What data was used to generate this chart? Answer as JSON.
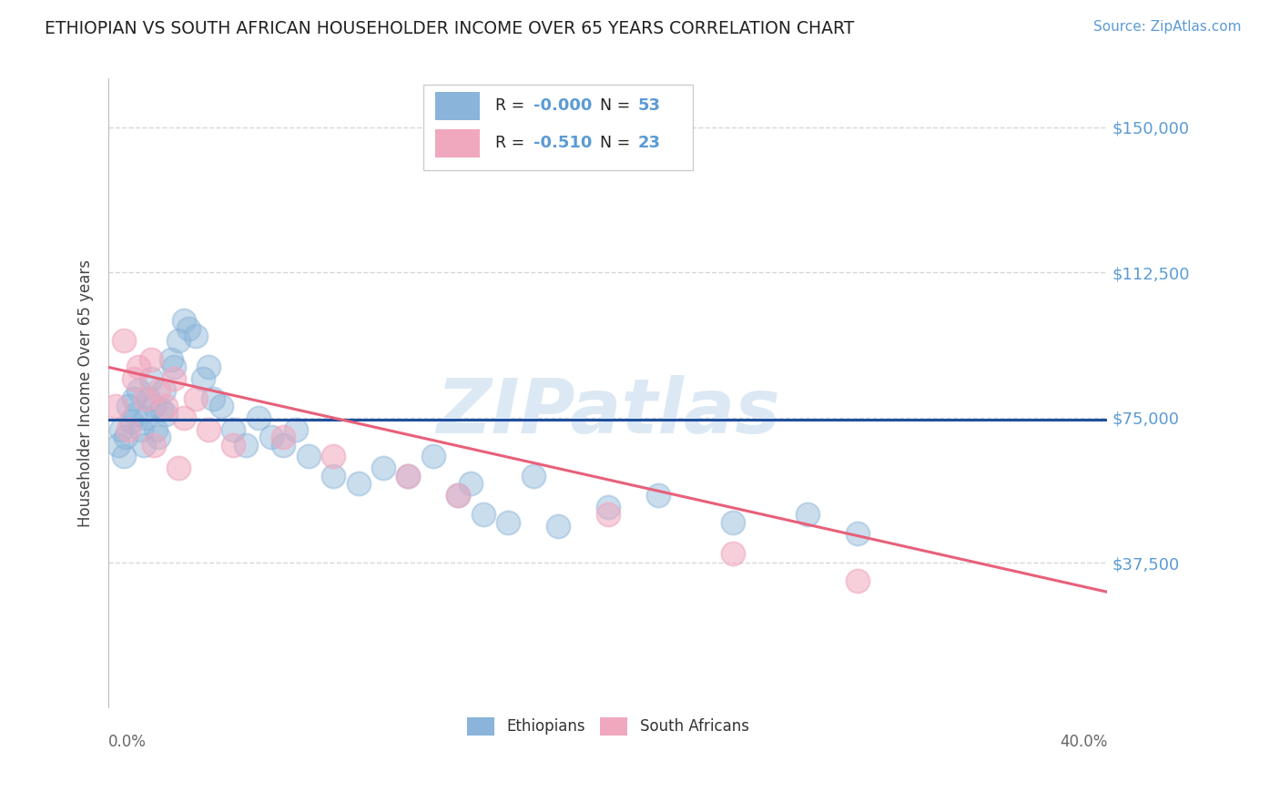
{
  "title": "ETHIOPIAN VS SOUTH AFRICAN HOUSEHOLDER INCOME OVER 65 YEARS CORRELATION CHART",
  "source": "Source: ZipAtlas.com",
  "ylabel": "Householder Income Over 65 years",
  "xlim": [
    0.0,
    40.0
  ],
  "ylim": [
    0,
    162500
  ],
  "yticks": [
    0,
    37500,
    75000,
    112500,
    150000
  ],
  "ytick_labels": [
    "",
    "$37,500",
    "$75,000",
    "$112,500",
    "$150,000"
  ],
  "background_color": "#ffffff",
  "title_color": "#222222",
  "title_fontsize": 13.5,
  "source_color": "#5b9bd5",
  "watermark_text": "ZIPatlas",
  "watermark_color": "#dce9f5",
  "blue_color": "#8ab4d9",
  "pink_color": "#f0a8be",
  "blue_line_color": "#1f4e9c",
  "pink_line_color": "#e8607a",
  "grid_color": "#cccccc",
  "blue_line_x": [
    0.0,
    40.0
  ],
  "blue_line_y": [
    74500,
    74500
  ],
  "pink_line_x": [
    0.0,
    40.0
  ],
  "pink_line_y": [
    88000,
    30000
  ],
  "ethiopian_x": [
    0.4,
    0.5,
    0.6,
    0.7,
    0.8,
    0.9,
    1.0,
    1.1,
    1.2,
    1.3,
    1.4,
    1.5,
    1.6,
    1.7,
    1.8,
    1.9,
    2.0,
    2.1,
    2.2,
    2.3,
    2.5,
    2.6,
    2.8,
    3.0,
    3.2,
    3.5,
    3.8,
    4.0,
    4.2,
    4.5,
    5.0,
    5.5,
    6.0,
    6.5,
    7.0,
    7.5,
    8.0,
    9.0,
    10.0,
    11.0,
    12.0,
    13.0,
    14.0,
    15.0,
    16.0,
    18.0,
    20.0,
    22.0,
    25.0,
    28.0,
    30.0,
    14.5,
    17.0
  ],
  "ethiopian_y": [
    68000,
    72000,
    65000,
    70000,
    78000,
    74000,
    80000,
    76000,
    82000,
    72000,
    68000,
    75000,
    80000,
    85000,
    78000,
    72000,
    70000,
    77000,
    82000,
    76000,
    90000,
    88000,
    95000,
    100000,
    98000,
    96000,
    85000,
    88000,
    80000,
    78000,
    72000,
    68000,
    75000,
    70000,
    68000,
    72000,
    65000,
    60000,
    58000,
    62000,
    60000,
    65000,
    55000,
    50000,
    48000,
    47000,
    52000,
    55000,
    48000,
    50000,
    45000,
    58000,
    60000
  ],
  "sa_x": [
    0.3,
    0.6,
    0.8,
    1.0,
    1.2,
    1.5,
    1.7,
    2.0,
    2.3,
    2.6,
    3.0,
    3.5,
    4.0,
    5.0,
    7.0,
    9.0,
    12.0,
    14.0,
    20.0,
    25.0,
    30.0,
    1.8,
    2.8
  ],
  "sa_y": [
    78000,
    95000,
    72000,
    85000,
    88000,
    80000,
    90000,
    82000,
    78000,
    85000,
    75000,
    80000,
    72000,
    68000,
    70000,
    65000,
    60000,
    55000,
    50000,
    40000,
    33000,
    68000,
    62000
  ]
}
